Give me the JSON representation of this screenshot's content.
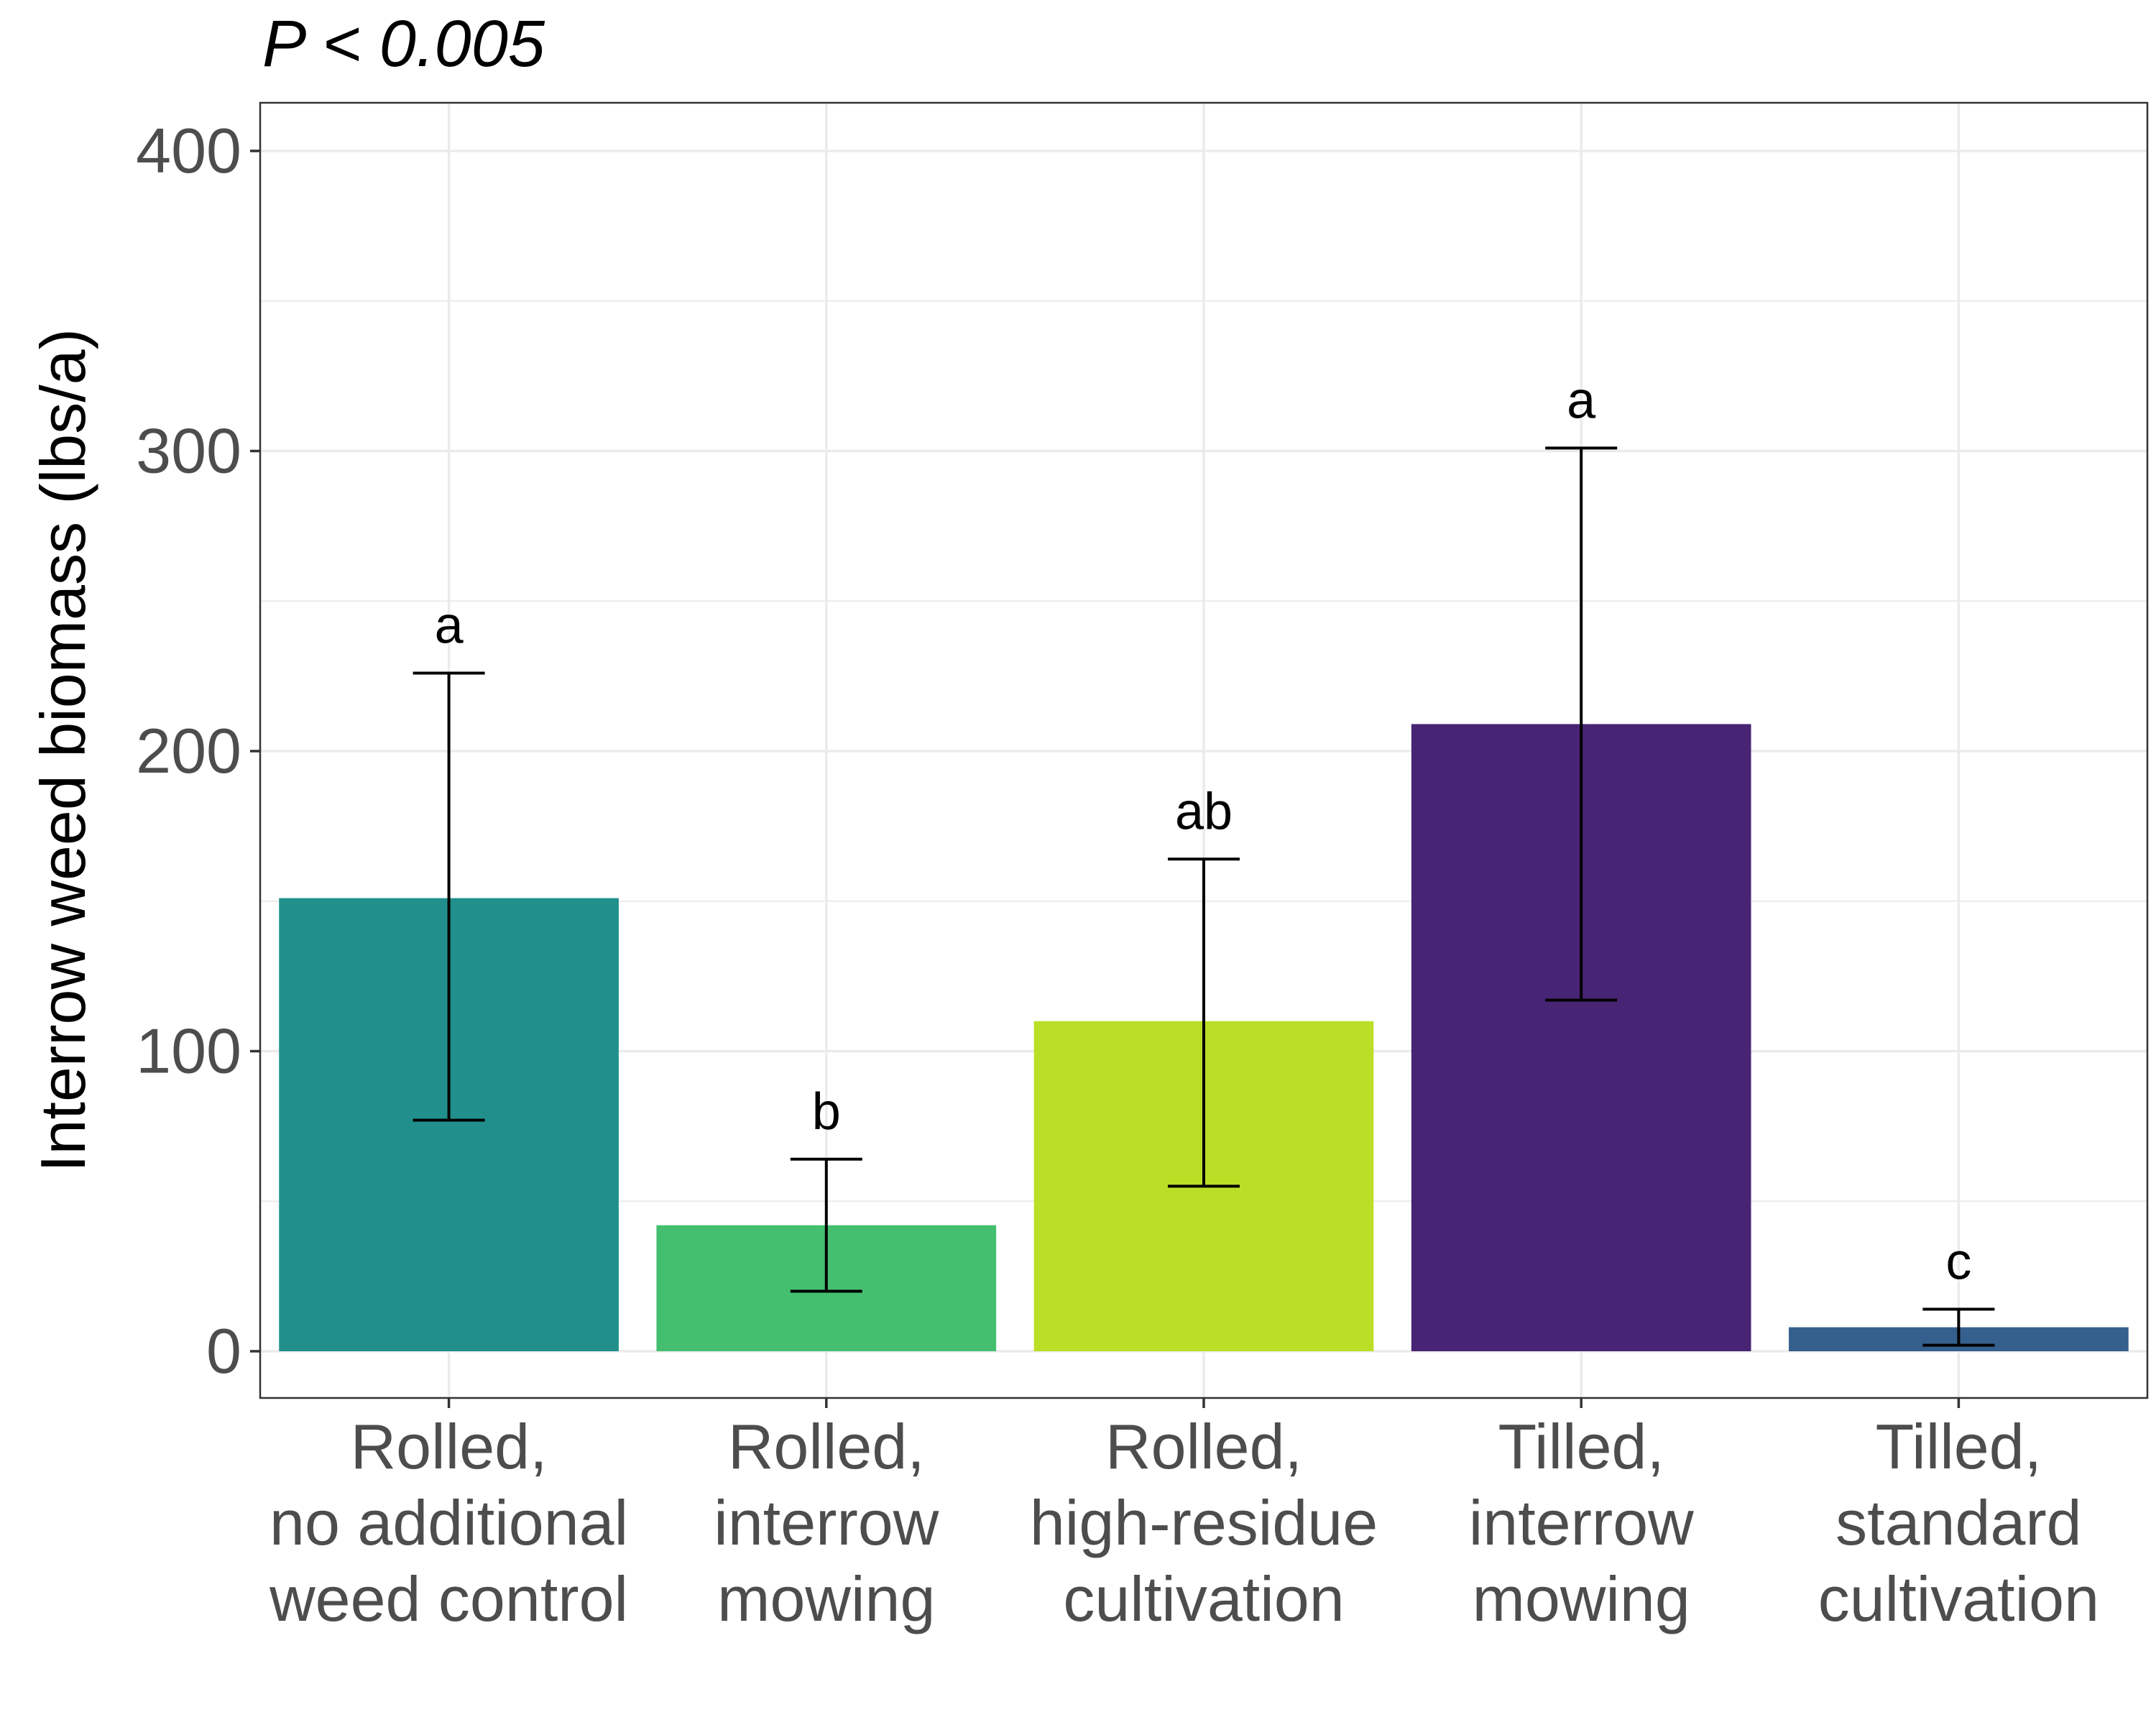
{
  "chart_data": {
    "type": "bar",
    "title": "P < 0.005",
    "xlabel": "",
    "ylabel": "Interrow weed biomass (lbs/a)",
    "ylim": [
      -15,
      400
    ],
    "yticks": [
      0,
      100,
      200,
      300,
      400
    ],
    "grid": true,
    "categories": [
      [
        "Rolled,",
        "no additional",
        "weed control"
      ],
      [
        "Rolled,",
        "interrow",
        "mowing"
      ],
      [
        "Rolled,",
        "high-residue",
        "cultivation"
      ],
      [
        "Tilled,",
        "interrow",
        "mowing"
      ],
      [
        "Tilled,",
        "standard",
        "cultivation"
      ]
    ],
    "values": [
      151,
      42,
      110,
      209,
      8
    ],
    "error_low": [
      77,
      20,
      55,
      117,
      2
    ],
    "error_high": [
      226,
      64,
      164,
      301,
      14
    ],
    "letters": [
      "a",
      "b",
      "ab",
      "a",
      "c"
    ],
    "colors": [
      "#21908C",
      "#44BF70",
      "#BBDF27",
      "#482475",
      "#355F8D"
    ]
  }
}
